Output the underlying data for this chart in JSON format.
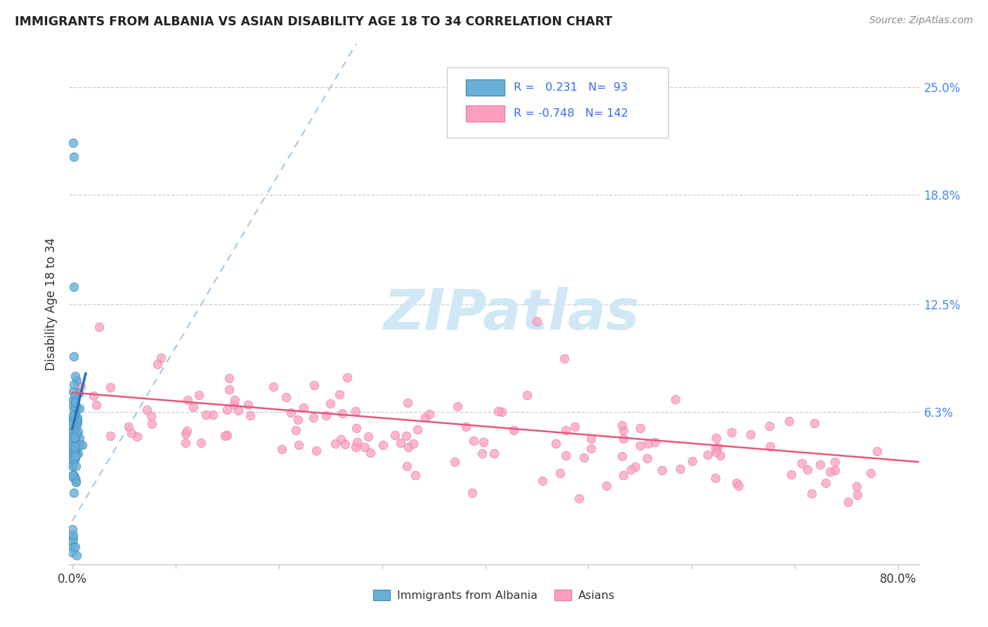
{
  "title": "IMMIGRANTS FROM ALBANIA VS ASIAN DISABILITY AGE 18 TO 34 CORRELATION CHART",
  "source": "Source: ZipAtlas.com",
  "ylabel": "Disability Age 18 to 34",
  "ytick_vals": [
    0.063,
    0.125,
    0.188,
    0.25
  ],
  "ytick_labels": [
    "6.3%",
    "12.5%",
    "18.8%",
    "25.0%"
  ],
  "xlim": [
    -0.003,
    0.82
  ],
  "ylim": [
    -0.025,
    0.275
  ],
  "legend_blue_r": "0.231",
  "legend_blue_n": "93",
  "legend_pink_r": "-0.748",
  "legend_pink_n": "142",
  "blue_scatter_color": "#6baed6",
  "blue_edge_color": "#4292c6",
  "pink_scatter_color": "#fc9fbf",
  "pink_edge_color": "#e87daa",
  "blue_trend_color": "#2171b5",
  "pink_trend_color": "#e8567a",
  "dashed_line_color": "#9ecae1",
  "watermark_color": "#d0e8f5",
  "right_tick_color": "#4488ff",
  "title_color": "#222222",
  "source_color": "#888888"
}
